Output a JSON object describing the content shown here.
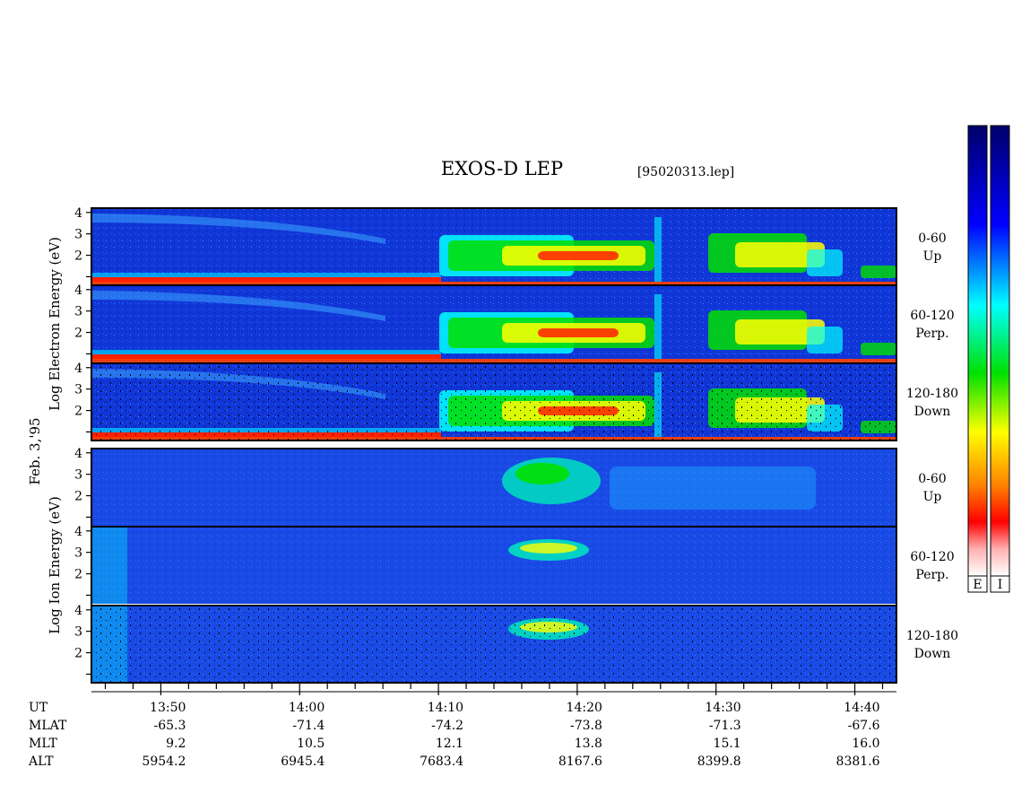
{
  "title": "EXOS-D LEP",
  "file_label": "[95020313.lep]",
  "date_label": "Feb. 3,'95",
  "colorbar_labels": [
    "E",
    "I"
  ],
  "chart_data": {
    "type": "heatmap",
    "panel_groups": [
      {
        "species": "Electron",
        "ylabel": "Log  Electron  Energy (eV)",
        "panels": [
          {
            "angle_label": "0-60",
            "direction_label": "Up"
          },
          {
            "angle_label": "60-120",
            "direction_label": "Perp."
          },
          {
            "angle_label": "120-180",
            "direction_label": "Down"
          }
        ]
      },
      {
        "species": "Ion",
        "ylabel": "Log  Ion  Energy (eV)",
        "panels": [
          {
            "angle_label": "0-60",
            "direction_label": "Up"
          },
          {
            "angle_label": "60-120",
            "direction_label": "Perp."
          },
          {
            "angle_label": "120-180",
            "direction_label": "Down"
          }
        ]
      }
    ],
    "y_ticks": [
      "1",
      "2",
      "3",
      "4"
    ],
    "ylim": [
      0.6,
      4.2
    ],
    "x_ticks": [
      "13:50",
      "14:00",
      "14:10",
      "14:20",
      "14:30",
      "14:40"
    ],
    "x_tick_minutes": [
      0,
      10,
      20,
      30,
      40,
      50
    ],
    "xlim_minutes": [
      -5,
      53
    ],
    "x_minor_tick_step_minutes": 2,
    "ephemeris": [
      {
        "label": "UT",
        "values": [
          "13:50",
          "14:00",
          "14:10",
          "14:20",
          "14:30",
          "14:40"
        ]
      },
      {
        "label": "MLAT",
        "values": [
          "-65.3",
          "-71.4",
          "-74.2",
          "-73.8",
          "-71.3",
          "-67.6"
        ]
      },
      {
        "label": "MLT",
        "values": [
          "9.2",
          "10.5",
          "12.1",
          "13.8",
          "15.1",
          "16.0"
        ]
      },
      {
        "label": "ALT",
        "values": [
          "5954.2",
          "6945.4",
          "7683.4",
          "8167.6",
          "8399.8",
          "8381.6"
        ]
      }
    ],
    "colorscale": [
      "#ffffff",
      "#ffb0b0",
      "#ff0000",
      "#ff8000",
      "#ffff00",
      "#00e000",
      "#00ffff",
      "#0000ff",
      "#00006a"
    ]
  }
}
